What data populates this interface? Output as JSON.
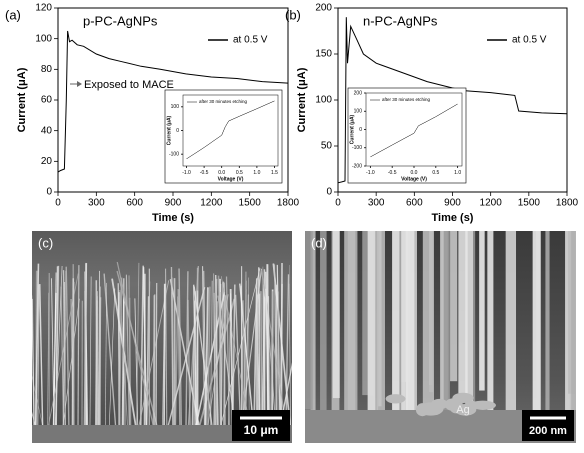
{
  "chart_data": [
    {
      "type": "line",
      "panel_label": "(a)",
      "title": "p-PC-AgNPs",
      "xlabel": "Time (s)",
      "ylabel": "Current (μA)",
      "annotation": "Exposed to MACE",
      "xlim": [
        0,
        1800
      ],
      "ylim": [
        0,
        120
      ],
      "xticks": [
        0,
        300,
        600,
        900,
        1200,
        1500,
        1800
      ],
      "yticks": [
        0,
        20,
        40,
        60,
        80,
        100,
        120
      ],
      "x": [
        0,
        20,
        50,
        65,
        75,
        90,
        110,
        150,
        200,
        300,
        400,
        500,
        650,
        800,
        1000,
        1200,
        1400,
        1600,
        1800
      ],
      "series": [
        {
          "name": "at 0.5 V",
          "color": "#000000",
          "values": [
            13,
            14,
            15,
            60,
            105,
            98,
            99,
            96,
            95,
            90,
            87,
            85,
            82,
            80,
            77,
            75,
            74,
            72,
            71
          ]
        }
      ]
    },
    {
      "type": "line",
      "xlabel": "Voltage (V)",
      "ylabel": "Current (μA)",
      "xlim": [
        -1.1,
        1.6
      ],
      "ylim": [
        -150,
        150
      ],
      "xticks": [
        {
          "value": -1,
          "label": "-1.0"
        },
        -0.5,
        {
          "value": 0,
          "label": "0.0"
        },
        0.5,
        {
          "value": 1,
          "label": "1.0"
        },
        1.5
      ],
      "yticks": [
        -100,
        0,
        100
      ],
      "x": [
        -1,
        -0.5,
        0,
        0.1,
        0.2,
        0.5,
        1,
        1.5
      ],
      "series": [
        {
          "name": "after 30 minutes etching",
          "color": "#000000",
          "values": [
            -120,
            -72,
            -20,
            15,
            40,
            60,
            92,
            125
          ]
        }
      ]
    },
    {
      "type": "line",
      "panel_label": "(b)",
      "title": "n-PC-AgNPs",
      "xlabel": "Time (s)",
      "ylabel": "Current (μA)",
      "xlim": [
        0,
        1800
      ],
      "ylim": [
        0,
        200
      ],
      "xticks": [
        0,
        300,
        600,
        900,
        1200,
        1500,
        1800
      ],
      "yticks": [
        0,
        50,
        100,
        150,
        200
      ],
      "x": [
        0,
        30,
        55,
        65,
        75,
        100,
        150,
        200,
        300,
        500,
        700,
        900,
        1000,
        1200,
        1390,
        1420,
        1600,
        1800
      ],
      "series": [
        {
          "name": "at 0.5 V",
          "color": "#000000",
          "values": [
            10,
            11,
            12,
            190,
            140,
            180,
            165,
            150,
            140,
            130,
            120,
            113,
            110,
            108,
            105,
            88,
            86,
            85
          ]
        }
      ]
    },
    {
      "type": "line",
      "xlabel": "Voltage (V)",
      "ylabel": "Current (μA)",
      "xlim": [
        -1.1,
        1.1
      ],
      "ylim": [
        -200,
        200
      ],
      "xticks": [
        {
          "value": -1,
          "label": "-1.0"
        },
        -0.5,
        {
          "value": 0,
          "label": "0.0"
        },
        0.5,
        {
          "value": 1,
          "label": "1.0"
        }
      ],
      "yticks": [
        -200,
        -100,
        0,
        100,
        200
      ],
      "x": [
        -1,
        -0.5,
        0,
        0.1,
        0.3,
        0.5,
        1
      ],
      "series": [
        {
          "name": "after 30 minutes etching",
          "color": "#000000",
          "values": [
            -150,
            -85,
            -20,
            20,
            45,
            70,
            140
          ]
        }
      ]
    }
  ],
  "images": [
    {
      "label": "(c)",
      "scale_bar": "10 μm"
    },
    {
      "label": "(d)",
      "scale_bar": "200 nm",
      "annotation": "Ag"
    }
  ]
}
